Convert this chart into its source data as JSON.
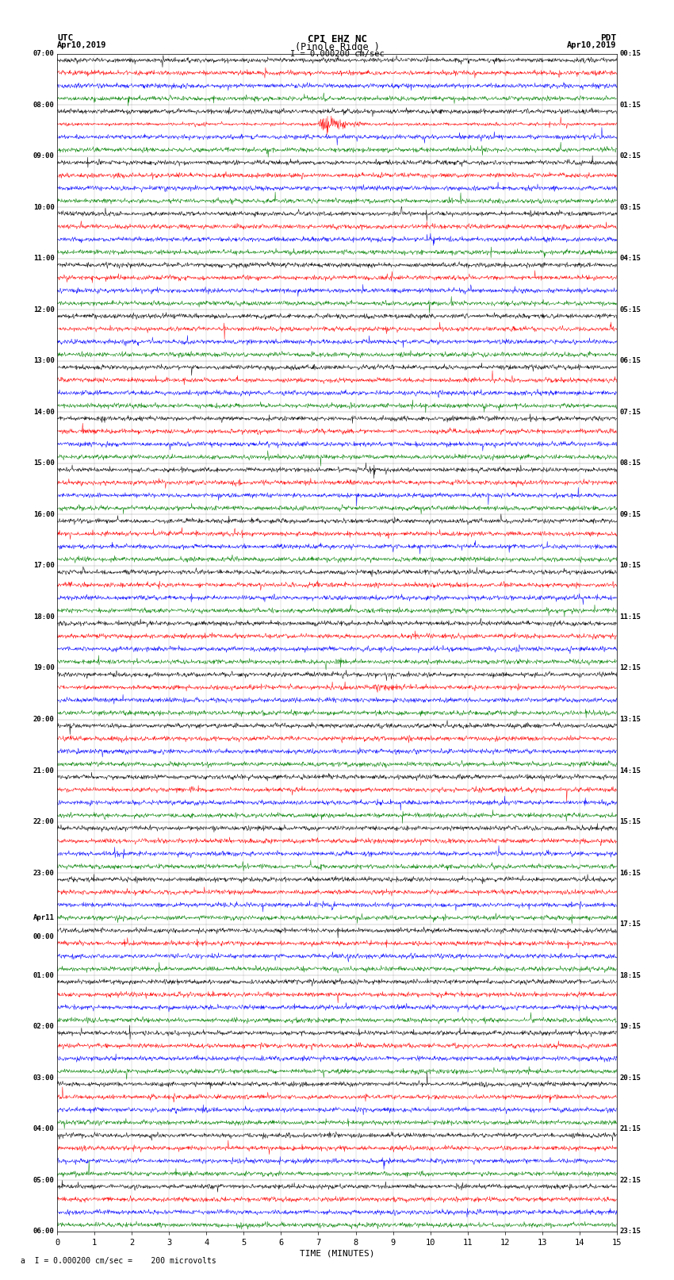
{
  "title_line1": "CPI EHZ NC",
  "title_line2": "(Pinole Ridge )",
  "scale_label": "I = 0.000200 cm/sec",
  "utc_label": "UTC",
  "utc_date": "Apr10,2019",
  "pdt_label": "PDT",
  "pdt_date": "Apr10,2019",
  "bottom_label": "a  I = 0.000200 cm/sec =    200 microvolts",
  "xlabel": "TIME (MINUTES)",
  "xticks": [
    0,
    1,
    2,
    3,
    4,
    5,
    6,
    7,
    8,
    9,
    10,
    11,
    12,
    13,
    14,
    15
  ],
  "colors": [
    "black",
    "red",
    "blue",
    "green"
  ],
  "bg_color": "white",
  "num_rows": 92,
  "left_utc_major": [
    [
      0,
      "07:00"
    ],
    [
      4,
      "08:00"
    ],
    [
      8,
      "09:00"
    ],
    [
      12,
      "10:00"
    ],
    [
      16,
      "11:00"
    ],
    [
      20,
      "12:00"
    ],
    [
      24,
      "13:00"
    ],
    [
      28,
      "14:00"
    ],
    [
      32,
      "15:00"
    ],
    [
      36,
      "16:00"
    ],
    [
      40,
      "17:00"
    ],
    [
      44,
      "18:00"
    ],
    [
      48,
      "19:00"
    ],
    [
      52,
      "20:00"
    ],
    [
      56,
      "21:00"
    ],
    [
      60,
      "22:00"
    ],
    [
      64,
      "23:00"
    ],
    [
      68,
      "Apr11"
    ],
    [
      69,
      "00:00"
    ],
    [
      72,
      "01:00"
    ],
    [
      76,
      "02:00"
    ],
    [
      80,
      "03:00"
    ],
    [
      84,
      "04:00"
    ],
    [
      88,
      "05:00"
    ],
    [
      92,
      "06:00"
    ]
  ],
  "right_pdt_major": [
    [
      0,
      "00:15"
    ],
    [
      4,
      "01:15"
    ],
    [
      8,
      "02:15"
    ],
    [
      12,
      "03:15"
    ],
    [
      16,
      "04:15"
    ],
    [
      20,
      "05:15"
    ],
    [
      24,
      "06:15"
    ],
    [
      28,
      "07:15"
    ],
    [
      32,
      "08:15"
    ],
    [
      36,
      "09:15"
    ],
    [
      40,
      "10:15"
    ],
    [
      44,
      "11:15"
    ],
    [
      48,
      "12:15"
    ],
    [
      52,
      "13:15"
    ],
    [
      56,
      "14:15"
    ],
    [
      60,
      "15:15"
    ],
    [
      64,
      "16:15"
    ],
    [
      68,
      "17:15"
    ],
    [
      72,
      "18:15"
    ],
    [
      76,
      "19:15"
    ],
    [
      80,
      "20:15"
    ],
    [
      84,
      "21:15"
    ],
    [
      88,
      "22:15"
    ],
    [
      92,
      "23:15"
    ]
  ]
}
